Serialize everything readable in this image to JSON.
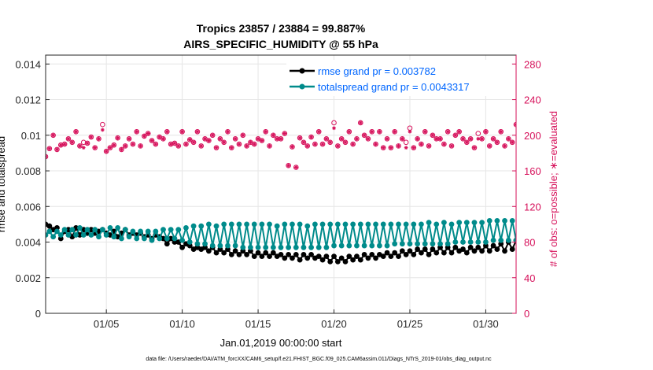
{
  "chart_data": {
    "type": "line",
    "title": "Tropics 23857 / 23884 = 99.887%",
    "subtitle": "AIRS_SPECIFIC_HUMIDITY @ 55 hPa",
    "xlabel": "Jan.01,2019 00:00:00 start",
    "ylabel": "rmse and totalspread",
    "y2label": "# of obs: o=possible; ∗=evaluated",
    "footer": "data file: /Users/raeder/DAI/ATM_forcXX/CAM6_setup/f.e21.FHIST_BGC.f09_025.CAM6assim.011/Diags_NTrS_2019-01/obs_diag_output.nc",
    "xlim": [
      1,
      32
    ],
    "ylim": [
      0,
      0.0145
    ],
    "y2lim": [
      0,
      290
    ],
    "x_ticks": [
      5,
      10,
      15,
      20,
      25,
      30
    ],
    "x_tick_labels": [
      "01/05",
      "01/10",
      "01/15",
      "01/20",
      "01/25",
      "01/30"
    ],
    "y_ticks": [
      0,
      0.002,
      0.004,
      0.006,
      0.008,
      0.01,
      0.012,
      0.014
    ],
    "y_tick_labels": [
      "0",
      "0.002",
      "0.004",
      "0.006",
      "0.008",
      "0.01",
      "0.012",
      "0.014"
    ],
    "y2_ticks": [
      0,
      40,
      80,
      120,
      160,
      200,
      240,
      280
    ],
    "y2_tick_labels": [
      "0",
      "40",
      "80",
      "120",
      "160",
      "200",
      "240",
      "280"
    ],
    "grid": true,
    "legend_position": "top-right",
    "series": [
      {
        "name": "rmse grand pr = 0.003782",
        "color": "#000000",
        "axis": "left",
        "x_start": 1,
        "x_step": 0.25,
        "values": [
          0.005,
          0.0049,
          0.0047,
          0.0048,
          0.0042,
          0.0046,
          0.0047,
          0.0043,
          0.0048,
          0.0044,
          0.0047,
          0.0045,
          0.0047,
          0.0045,
          0.0046,
          0.0047,
          0.0045,
          0.0044,
          0.0046,
          0.0043,
          0.0045,
          0.0047,
          0.0044,
          0.0045,
          0.0044,
          0.0045,
          0.0043,
          0.0044,
          0.0042,
          0.0044,
          0.0043,
          0.0042,
          0.0039,
          0.0042,
          0.004,
          0.004,
          0.0037,
          0.0039,
          0.0038,
          0.0036,
          0.0037,
          0.0036,
          0.0037,
          0.0035,
          0.0037,
          0.0034,
          0.0036,
          0.0034,
          0.0036,
          0.0033,
          0.0035,
          0.0033,
          0.0035,
          0.0033,
          0.0035,
          0.0032,
          0.0034,
          0.0032,
          0.0034,
          0.0032,
          0.0034,
          0.0032,
          0.0033,
          0.0031,
          0.0033,
          0.0031,
          0.0033,
          0.003,
          0.0033,
          0.0031,
          0.0033,
          0.0031,
          0.0032,
          0.003,
          0.0032,
          0.0029,
          0.0032,
          0.0029,
          0.0031,
          0.0029,
          0.0032,
          0.003,
          0.0032,
          0.003,
          0.0033,
          0.0031,
          0.0033,
          0.0031,
          0.0033,
          0.0032,
          0.0034,
          0.0032,
          0.0034,
          0.0032,
          0.0035,
          0.0033,
          0.0035,
          0.0033,
          0.0036,
          0.0034,
          0.0036,
          0.0033,
          0.0036,
          0.0034,
          0.0037,
          0.0034,
          0.0037,
          0.0034,
          0.0037,
          0.0035,
          0.0036,
          0.0034,
          0.0037,
          0.0035,
          0.0037,
          0.0035,
          0.0038,
          0.0035,
          0.0038,
          0.0036,
          0.0039,
          0.0035,
          0.004,
          0.0036,
          0.0041,
          0.0036
        ]
      },
      {
        "name": "totalspread grand pr = 0.0043317",
        "color": "#008b8b",
        "axis": "left",
        "x_start": 1,
        "x_step": 0.25,
        "values": [
          0.0044,
          0.0046,
          0.0043,
          0.0046,
          0.0044,
          0.0047,
          0.0044,
          0.0047,
          0.0044,
          0.0048,
          0.0044,
          0.0047,
          0.0044,
          0.0047,
          0.0043,
          0.0047,
          0.0044,
          0.0048,
          0.0043,
          0.0048,
          0.0042,
          0.0047,
          0.0043,
          0.0046,
          0.0042,
          0.0046,
          0.0042,
          0.0046,
          0.0041,
          0.0046,
          0.0042,
          0.0047,
          0.0042,
          0.0047,
          0.0042,
          0.0047,
          0.0041,
          0.0048,
          0.004,
          0.0049,
          0.0039,
          0.0049,
          0.0039,
          0.005,
          0.0038,
          0.0049,
          0.0038,
          0.005,
          0.0038,
          0.005,
          0.0038,
          0.005,
          0.0037,
          0.005,
          0.0037,
          0.005,
          0.0037,
          0.005,
          0.0037,
          0.005,
          0.0037,
          0.0049,
          0.0037,
          0.005,
          0.0037,
          0.005,
          0.0037,
          0.005,
          0.0037,
          0.0049,
          0.0037,
          0.005,
          0.0037,
          0.005,
          0.0037,
          0.005,
          0.0038,
          0.005,
          0.0038,
          0.005,
          0.0038,
          0.005,
          0.0038,
          0.005,
          0.0038,
          0.005,
          0.0038,
          0.005,
          0.0038,
          0.005,
          0.0038,
          0.005,
          0.0039,
          0.005,
          0.0039,
          0.005,
          0.0039,
          0.005,
          0.0039,
          0.005,
          0.0039,
          0.0051,
          0.0039,
          0.005,
          0.0039,
          0.0051,
          0.0039,
          0.005,
          0.004,
          0.0051,
          0.004,
          0.0051,
          0.004,
          0.0051,
          0.004,
          0.0051,
          0.004,
          0.0052,
          0.0041,
          0.0052,
          0.0041,
          0.0052,
          0.0041,
          0.0052,
          0.0041,
          0.0051
        ]
      },
      {
        "name": "# of obs possible",
        "color": "#d6105a",
        "axis": "right",
        "marker": "o",
        "x_start": 1,
        "x_step": 0.25,
        "values": [
          176,
          185,
          200,
          184,
          189,
          190,
          196,
          192,
          204,
          188,
          192,
          191,
          198,
          186,
          196,
          212,
          182,
          186,
          189,
          197,
          184,
          188,
          196,
          190,
          204,
          188,
          199,
          202,
          194,
          190,
          198,
          196,
          204,
          190,
          191,
          188,
          204,
          190,
          195,
          192,
          204,
          188,
          196,
          194,
          200,
          186,
          196,
          192,
          204,
          186,
          196,
          190,
          200,
          188,
          192,
          190,
          196,
          194,
          204,
          188,
          200,
          196,
          196,
          202,
          166,
          187,
          164,
          197,
          192,
          188,
          198,
          190,
          204,
          190,
          196,
          192,
          214,
          188,
          196,
          192,
          204,
          190,
          196,
          214,
          200,
          196,
          204,
          190,
          204,
          186,
          196,
          186,
          204,
          188,
          196,
          192,
          208,
          186,
          196,
          190,
          204,
          188,
          200,
          196,
          196,
          190,
          204,
          188,
          200,
          204,
          196,
          192,
          196,
          186,
          202,
          196,
          204,
          188,
          196,
          192,
          204,
          188,
          196,
          192,
          212,
          192
        ]
      },
      {
        "name": "# of obs evaluated",
        "color": "#d6105a",
        "axis": "right",
        "marker": "*",
        "x_start": 1,
        "x_step": 0.25,
        "values": [
          176,
          185,
          200,
          184,
          189,
          190,
          196,
          192,
          204,
          188,
          186,
          191,
          198,
          186,
          196,
          206,
          182,
          186,
          189,
          197,
          184,
          188,
          196,
          190,
          204,
          188,
          199,
          202,
          194,
          190,
          198,
          196,
          204,
          190,
          191,
          188,
          204,
          190,
          195,
          192,
          204,
          188,
          196,
          194,
          200,
          186,
          196,
          192,
          204,
          186,
          196,
          190,
          200,
          188,
          192,
          190,
          196,
          194,
          204,
          188,
          200,
          196,
          196,
          202,
          166,
          187,
          164,
          197,
          192,
          188,
          198,
          190,
          204,
          190,
          196,
          192,
          208,
          188,
          196,
          192,
          204,
          190,
          196,
          214,
          200,
          196,
          204,
          190,
          204,
          186,
          196,
          186,
          204,
          188,
          196,
          186,
          204,
          186,
          196,
          190,
          204,
          188,
          200,
          196,
          196,
          190,
          204,
          188,
          200,
          204,
          196,
          192,
          196,
          186,
          196,
          196,
          204,
          188,
          196,
          192,
          204,
          188,
          196,
          192,
          212,
          192
        ]
      }
    ]
  }
}
